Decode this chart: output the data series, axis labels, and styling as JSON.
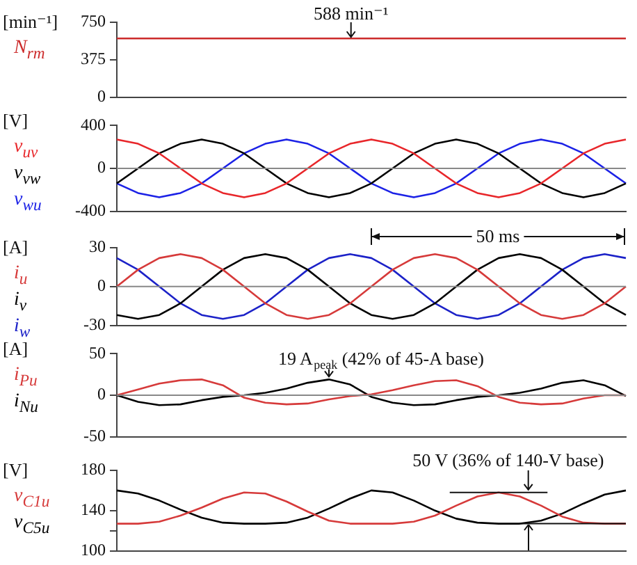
{
  "chart_data": [
    {
      "type": "line",
      "ylabel": "[min⁻¹]",
      "categories": [
        null,
        null,
        null,
        null,
        null,
        null,
        null,
        null,
        null,
        null,
        null,
        null,
        null,
        null,
        null,
        null,
        null,
        null,
        null,
        null,
        null,
        null,
        null,
        null,
        null
      ],
      "ylim": [
        0,
        750
      ],
      "yticks": [
        0,
        375,
        750
      ],
      "grid": false,
      "legend": "left",
      "tick_labels": "y",
      "marker": "none",
      "annotations": [
        "588 min⁻¹"
      ],
      "series": [
        {
          "name": "N$_{rm}$",
          "color": "#cc2b2b",
          "values": [
            588,
            588,
            588,
            588,
            588,
            588,
            588,
            588,
            588,
            588,
            588,
            588,
            588,
            588,
            588,
            588,
            588,
            588,
            588,
            588,
            588,
            588,
            588,
            588,
            588
          ]
        }
      ]
    },
    {
      "type": "line",
      "ylabel": "[V]",
      "categories": [
        null,
        null,
        null,
        null,
        null,
        null,
        null,
        null,
        null,
        null,
        null,
        null,
        null,
        null,
        null,
        null,
        null,
        null,
        null,
        null,
        null,
        null,
        null,
        null,
        null
      ],
      "ylim": [
        -400,
        400
      ],
      "yticks": [
        -400,
        0,
        400
      ],
      "grid": false,
      "legend": "left",
      "tick_labels": "y",
      "marker": "none",
      "ref_lines": [
        {
          "axis": "y",
          "value": 0,
          "color": "#888888"
        }
      ],
      "series": [
        {
          "name": "v$_{uv}$",
          "color": "#e8262a",
          "values": [
            270,
            230,
            140,
            0,
            -140,
            -230,
            -270,
            -230,
            -140,
            0,
            140,
            230,
            270,
            230,
            140,
            0,
            -140,
            -230,
            -270,
            -230,
            -140,
            0,
            140,
            230,
            270
          ]
        },
        {
          "name": "v$_{vw}$",
          "color": "#000000",
          "values": [
            -140,
            0,
            140,
            230,
            270,
            230,
            140,
            0,
            -140,
            -230,
            -270,
            -230,
            -140,
            0,
            140,
            230,
            270,
            230,
            140,
            0,
            -140,
            -230,
            -270,
            -230,
            -140
          ]
        },
        {
          "name": "v$_{wu}$",
          "color": "#1c22e6",
          "values": [
            -140,
            -230,
            -270,
            -230,
            -140,
            0,
            140,
            230,
            270,
            230,
            140,
            0,
            -140,
            -230,
            -270,
            -230,
            -140,
            0,
            140,
            230,
            270,
            230,
            140,
            0,
            -140
          ]
        }
      ]
    },
    {
      "type": "line",
      "ylabel": "[A]",
      "categories": [
        null,
        null,
        null,
        null,
        null,
        null,
        null,
        null,
        null,
        null,
        null,
        null,
        null,
        null,
        null,
        null,
        null,
        null,
        null,
        null,
        null,
        null,
        null,
        null,
        null
      ],
      "ylim": [
        -30,
        30
      ],
      "yticks": [
        -30,
        0,
        30
      ],
      "grid": false,
      "legend": "left",
      "tick_labels": "y",
      "marker": "none",
      "annotations": [
        "50 ms"
      ],
      "ref_lines": [
        {
          "axis": "y",
          "value": 0,
          "color": "#888888"
        }
      ],
      "series": [
        {
          "name": "i$_{u}$",
          "color": "#d63a3a",
          "values": [
            0,
            13,
            22,
            25,
            22,
            13,
            0,
            -13,
            -22,
            -25,
            -22,
            -13,
            0,
            13,
            22,
            25,
            22,
            13,
            0,
            -13,
            -22,
            -25,
            -22,
            -13,
            0
          ]
        },
        {
          "name": "i$_{v}$",
          "color": "#000000",
          "values": [
            -22,
            -25,
            -22,
            -13,
            0,
            13,
            22,
            25,
            22,
            13,
            0,
            -13,
            -22,
            -25,
            -22,
            -13,
            0,
            13,
            22,
            25,
            22,
            13,
            0,
            -13,
            -22
          ]
        },
        {
          "name": "i$_{w}$",
          "color": "#1c22c8",
          "values": [
            22,
            13,
            0,
            -13,
            -22,
            -25,
            -22,
            -13,
            0,
            13,
            22,
            25,
            22,
            13,
            0,
            -13,
            -22,
            -25,
            -22,
            -13,
            0,
            13,
            22,
            25,
            22
          ]
        }
      ]
    },
    {
      "type": "line",
      "ylabel": "[A]",
      "categories": [
        null,
        null,
        null,
        null,
        null,
        null,
        null,
        null,
        null,
        null,
        null,
        null,
        null,
        null,
        null,
        null,
        null,
        null,
        null,
        null,
        null,
        null,
        null,
        null,
        null
      ],
      "ylim": [
        -50,
        50
      ],
      "yticks": [
        -50,
        0,
        50
      ],
      "grid": false,
      "legend": "left",
      "tick_labels": "y",
      "marker": "none",
      "annotations": [
        "19 A$_{peak}$ (42% of 45-A base)"
      ],
      "ref_lines": [
        {
          "axis": "y",
          "value": 0,
          "color": "#888888"
        }
      ],
      "series": [
        {
          "name": "i$_{Pu}$",
          "color": "#d63a3a",
          "values": [
            0,
            7,
            14,
            18,
            19,
            12,
            -3,
            -9,
            -11,
            -10,
            -5,
            -1,
            1,
            6,
            12,
            17,
            18,
            11,
            -2,
            -9,
            -11,
            -10,
            -4,
            0,
            0
          ]
        },
        {
          "name": "i$_{Nu}$",
          "color": "#000000",
          "values": [
            0,
            -8,
            -12,
            -11,
            -6,
            -2,
            0,
            3,
            8,
            15,
            19,
            13,
            -2,
            -9,
            -12,
            -11,
            -6,
            -2,
            0,
            3,
            8,
            15,
            18,
            12,
            -1
          ]
        }
      ]
    },
    {
      "type": "line",
      "ylabel": "[V]",
      "categories": [
        null,
        null,
        null,
        null,
        null,
        null,
        null,
        null,
        null,
        null,
        null,
        null,
        null,
        null,
        null,
        null,
        null,
        null,
        null,
        null,
        null,
        null,
        null,
        null,
        null
      ],
      "ylim": [
        100,
        180
      ],
      "yticks": [
        100,
        {
          "value": 120,
          "label": null
        },
        140,
        180
      ],
      "grid": false,
      "legend": "left",
      "tick_labels": "y",
      "marker": "none",
      "annotations": [
        "50 V (36% of 140-V base)"
      ],
      "ref_lines": [
        {
          "axis": "y",
          "value": 158,
          "color": "#111111"
        },
        {
          "axis": "y",
          "value": 127,
          "color": "#111111"
        }
      ],
      "series": [
        {
          "name": "v$_{C1u}$",
          "color": "#d63a3a",
          "values": [
            127,
            127,
            129,
            135,
            143,
            152,
            158,
            157,
            149,
            139,
            130,
            127,
            127,
            127,
            129,
            135,
            145,
            154,
            158,
            154,
            145,
            134,
            128,
            127,
            127
          ]
        },
        {
          "name": "v$_{C5u}$",
          "color": "#000000",
          "values": [
            160,
            157,
            150,
            141,
            133,
            128,
            127,
            127,
            128,
            133,
            142,
            152,
            160,
            158,
            150,
            140,
            132,
            128,
            127,
            127,
            130,
            137,
            147,
            156,
            160
          ]
        }
      ]
    }
  ]
}
